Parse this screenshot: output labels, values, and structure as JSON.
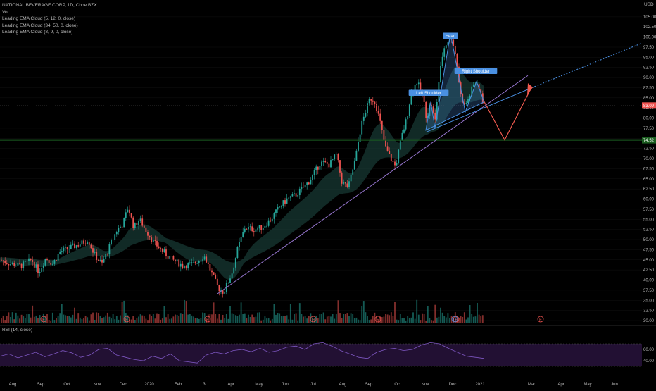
{
  "legend": {
    "title": "NATIONAL BEVERAGE CORP, 1D, Cboe BZX",
    "vol": "Vol",
    "ema1": "Leading EMA Cloud (5, 12, 0, close)",
    "ema2": "Leading EMA Cloud (34, 50, 0, close)",
    "ema3": "Leading EMA Cloud (8, 9, 0, close)"
  },
  "rsi_label": "RSI (14, close)",
  "currency": "USD",
  "colors": {
    "up": "#26a69a",
    "down": "#ef5350",
    "trend": "#9575cd",
    "pattern": "#4a90e2",
    "projection": "#f05a4f",
    "support": "#1b5e20",
    "rsi_line": "#7e57c2",
    "rsi_band": "#2a1440"
  },
  "chart_data": {
    "type": "candlestick",
    "y_axis": {
      "min": 30,
      "max": 107.5,
      "ticks": [
        "105.00",
        "102.50",
        "100.00",
        "97.50",
        "95.00",
        "92.50",
        "90.00",
        "87.50",
        "85.00",
        "82.50",
        "80.00",
        "77.50",
        "75.00",
        "72.50",
        "70.00",
        "67.50",
        "65.00",
        "62.50",
        "60.00",
        "57.50",
        "55.00",
        "52.50",
        "50.00",
        "47.50",
        "45.00",
        "42.50",
        "40.00",
        "37.50",
        "35.00",
        "32.50",
        "30.00"
      ],
      "tick_values": [
        105,
        102.5,
        100,
        97.5,
        95,
        92.5,
        90,
        87.5,
        85,
        82.5,
        80,
        77.5,
        75,
        72.5,
        70,
        67.5,
        65,
        62.5,
        60,
        57.5,
        55,
        52.5,
        50,
        47.5,
        45,
        42.5,
        40,
        37.5,
        35,
        32.5,
        30
      ]
    },
    "x_axis": {
      "labels": [
        "Aug",
        "Sep",
        "Oct",
        "Nov",
        "Dec",
        "2020",
        "Feb",
        "3",
        "Apr",
        "May",
        "Jun",
        "Jul",
        "Aug",
        "Sep",
        "Oct",
        "Nov",
        "Dec",
        "2021",
        "Mar",
        "Apr",
        "May",
        "Jun"
      ],
      "label_x": [
        18,
        58,
        95,
        138,
        175,
        212,
        253,
        290,
        328,
        368,
        405,
        445,
        487,
        524,
        565,
        604,
        643,
        682,
        755,
        797,
        835,
        873
      ]
    },
    "current_price": "83.09",
    "support_price": "74.52",
    "price_path": [
      [
        0,
        45
      ],
      [
        15,
        44
      ],
      [
        30,
        43.5
      ],
      [
        45,
        45
      ],
      [
        55,
        42
      ],
      [
        65,
        45.5
      ],
      [
        75,
        44
      ],
      [
        85,
        47
      ],
      [
        100,
        48
      ],
      [
        115,
        49
      ],
      [
        125,
        50
      ],
      [
        135,
        46
      ],
      [
        145,
        44
      ],
      [
        155,
        48
      ],
      [
        165,
        52
      ],
      [
        175,
        54
      ],
      [
        182,
        58
      ],
      [
        190,
        53
      ],
      [
        198,
        55
      ],
      [
        205,
        53
      ],
      [
        212,
        51
      ],
      [
        220,
        49
      ],
      [
        232,
        47
      ],
      [
        245,
        45
      ],
      [
        260,
        43.5
      ],
      [
        275,
        44
      ],
      [
        290,
        46
      ],
      [
        300,
        42
      ],
      [
        310,
        38
      ],
      [
        318,
        37
      ],
      [
        330,
        42
      ],
      [
        338,
        48
      ],
      [
        348,
        53
      ],
      [
        360,
        52.5
      ],
      [
        372,
        53
      ],
      [
        385,
        55
      ],
      [
        397,
        58
      ],
      [
        408,
        60
      ],
      [
        420,
        61
      ],
      [
        432,
        63
      ],
      [
        442,
        65
      ],
      [
        455,
        69
      ],
      [
        468,
        68.5
      ],
      [
        478,
        71
      ],
      [
        486,
        64
      ],
      [
        495,
        63
      ],
      [
        505,
        70
      ],
      [
        513,
        78
      ],
      [
        520,
        82
      ],
      [
        526,
        85
      ],
      [
        533,
        84
      ],
      [
        540,
        79
      ],
      [
        547,
        73
      ],
      [
        555,
        70
      ],
      [
        562,
        68
      ],
      [
        570,
        75
      ],
      [
        578,
        80
      ],
      [
        584,
        86
      ],
      [
        592,
        89
      ],
      [
        600,
        86
      ],
      [
        606,
        80
      ],
      [
        612,
        84
      ],
      [
        618,
        79
      ],
      [
        624,
        90
      ],
      [
        630,
        97
      ],
      [
        636,
        99
      ],
      [
        642,
        100
      ],
      [
        648,
        95
      ],
      [
        654,
        86
      ],
      [
        660,
        83
      ],
      [
        666,
        85
      ],
      [
        672,
        88
      ],
      [
        678,
        89
      ],
      [
        684,
        85
      ],
      [
        688,
        83.1
      ]
    ],
    "volume": [
      0.3,
      0.25,
      0.5,
      0.3,
      0.35,
      0.4,
      0.3,
      0.6,
      0.35,
      0.25
    ],
    "rsi": {
      "ticks": [
        "60.00",
        "40.00"
      ],
      "tick_values": [
        60,
        40
      ],
      "min": 20,
      "max": 80,
      "values": [
        48,
        52,
        45,
        50,
        55,
        47,
        52,
        58,
        54,
        46,
        50,
        60,
        62,
        50,
        46,
        42,
        40,
        48,
        44,
        52,
        40,
        38,
        36,
        50,
        55,
        52,
        58,
        60,
        56,
        62,
        55,
        58,
        64,
        66,
        60,
        70,
        72,
        66,
        58,
        52,
        46,
        44,
        55,
        60,
        62,
        58,
        60,
        68,
        72,
        70,
        62,
        55,
        48,
        46,
        44
      ]
    },
    "annotations": {
      "head": "Head",
      "left_shoulder": "Left Shoulder",
      "right_shoulder": "Right Shoulder"
    },
    "events": {
      "earnings_x": [
        62,
        180,
        295,
        445,
        537,
        648,
        768
      ],
      "earnings_label": "E",
      "dividend_x": [
        646
      ],
      "dividend_label": "D"
    }
  }
}
